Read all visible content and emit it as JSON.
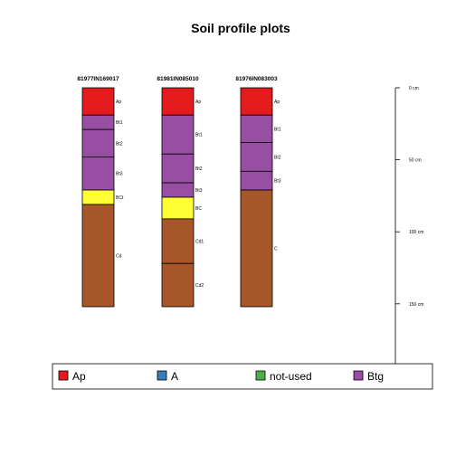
{
  "chart_data": {
    "type": "soil-profile",
    "title": "Soil profile plots",
    "depth_range": [
      0,
      152
    ],
    "depth_ticks": [
      {
        "depth": 0,
        "label": "0 cm"
      },
      {
        "depth": 50,
        "label": "50 cm"
      },
      {
        "depth": 100,
        "label": "100 cm"
      },
      {
        "depth": 150,
        "label": "150 cm"
      }
    ],
    "profiles": [
      {
        "id": "81977IN169017",
        "horizons": [
          {
            "name": "Ap",
            "top": 0,
            "bottom": 19,
            "color": "#e41a1c"
          },
          {
            "name": "Bt1",
            "top": 19,
            "bottom": 29,
            "color": "#984ea3"
          },
          {
            "name": "Bt2",
            "top": 29,
            "bottom": 48,
            "color": "#984ea3"
          },
          {
            "name": "Bt3",
            "top": 48,
            "bottom": 71,
            "color": "#984ea3"
          },
          {
            "name": "BCt",
            "top": 71,
            "bottom": 81,
            "color": "#ffff33"
          },
          {
            "name": "Cd",
            "top": 81,
            "bottom": 152,
            "color": "#a65628"
          }
        ]
      },
      {
        "id": "81981IN085010",
        "horizons": [
          {
            "name": "Ap",
            "top": 0,
            "bottom": 19,
            "color": "#e41a1c"
          },
          {
            "name": "Bt1",
            "top": 19,
            "bottom": 46,
            "color": "#984ea3"
          },
          {
            "name": "Bt2",
            "top": 46,
            "bottom": 66,
            "color": "#984ea3"
          },
          {
            "name": "Bt3",
            "top": 66,
            "bottom": 76,
            "color": "#984ea3"
          },
          {
            "name": "BC",
            "top": 76,
            "bottom": 91,
            "color": "#ffff33"
          },
          {
            "name": "Cd1",
            "top": 91,
            "bottom": 122,
            "color": "#a65628"
          },
          {
            "name": "Cd2",
            "top": 122,
            "bottom": 152,
            "color": "#a65628"
          }
        ]
      },
      {
        "id": "81976IN083003",
        "horizons": [
          {
            "name": "Ap",
            "top": 0,
            "bottom": 19,
            "color": "#e41a1c"
          },
          {
            "name": "Bt1",
            "top": 19,
            "bottom": 38,
            "color": "#984ea3"
          },
          {
            "name": "Bt2",
            "top": 38,
            "bottom": 58,
            "color": "#984ea3"
          },
          {
            "name": "Bt3",
            "top": 58,
            "bottom": 71,
            "color": "#984ea3"
          },
          {
            "name": "C",
            "top": 71,
            "bottom": 152,
            "color": "#a65628"
          }
        ]
      }
    ],
    "legend": [
      {
        "label": "Ap",
        "color": "#e41a1c"
      },
      {
        "label": "A",
        "color": "#377eb8"
      },
      {
        "label": "not-used",
        "color": "#4daf4a"
      },
      {
        "label": "Btg",
        "color": "#984ea3"
      }
    ]
  }
}
